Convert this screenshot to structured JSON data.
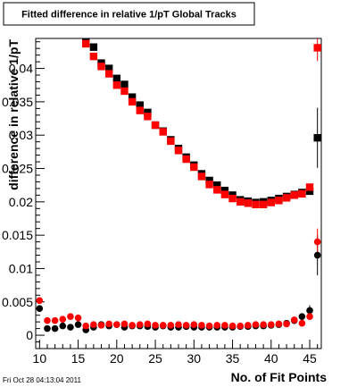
{
  "chart_data": {
    "type": "scatter",
    "title": "Fitted difference in relative 1/pT  Global Tracks",
    "xlabel": "No. of Fit Points",
    "ylabel": "difference in relative 1/pT",
    "xlim": [
      9.5,
      46.5
    ],
    "ylim": [
      -0.002,
      0.0445
    ],
    "x_ticks": [
      10,
      15,
      20,
      25,
      30,
      35,
      40,
      45
    ],
    "x_tick_labels": [
      "10",
      "15",
      "20",
      "25",
      "30",
      "35",
      "40",
      "45"
    ],
    "y_ticks": [
      0,
      0.005,
      0.01,
      0.015,
      0.02,
      0.025,
      0.03,
      0.035,
      0.04
    ],
    "y_tick_labels": [
      "0",
      "0.005",
      "0.01",
      "0.015",
      "0.02",
      "0.025",
      "0.03",
      "0.035",
      "0.04"
    ],
    "grid": false,
    "legend": "none",
    "colors": {
      "red": "#ff0000",
      "black": "#000000"
    },
    "series": [
      {
        "color": "#000000",
        "x": [
          16,
          17,
          18,
          19,
          20,
          21,
          22,
          23,
          24,
          25,
          26,
          27,
          28,
          29,
          30,
          31,
          32,
          33,
          34,
          35,
          36,
          37,
          38,
          39,
          40,
          41,
          42,
          43,
          44,
          45,
          46
        ],
        "y": [
          0.0445,
          0.0432,
          0.0408,
          0.04,
          0.0385,
          0.0376,
          0.0357,
          0.0345,
          0.0334,
          0.0315,
          0.0306,
          0.0293,
          0.028,
          0.0267,
          0.0255,
          0.0242,
          0.0232,
          0.0225,
          0.0217,
          0.021,
          0.0203,
          0.0201,
          0.0199,
          0.02,
          0.0202,
          0.0205,
          0.0208,
          0.0211,
          0.0214,
          0.0216,
          0.0296
        ],
        "yerr": [
          0,
          0,
          0,
          0,
          0,
          0,
          0,
          0,
          0,
          0,
          0,
          0,
          0,
          0,
          0,
          0,
          0,
          0,
          0,
          0,
          0,
          0,
          0,
          0,
          0,
          0,
          0,
          0,
          0,
          0,
          0.0045
        ]
      },
      {
        "color": "#ff0000",
        "x": [
          16,
          17,
          18,
          19,
          20,
          21,
          22,
          23,
          24,
          25,
          26,
          27,
          28,
          29,
          30,
          31,
          32,
          33,
          34,
          35,
          36,
          37,
          38,
          39,
          40,
          41,
          42,
          43,
          44,
          45,
          46
        ],
        "y": [
          0.0437,
          0.0418,
          0.0403,
          0.0392,
          0.0375,
          0.0366,
          0.035,
          0.0337,
          0.0328,
          0.0315,
          0.0305,
          0.0291,
          0.0277,
          0.0264,
          0.0252,
          0.0238,
          0.0226,
          0.0218,
          0.0211,
          0.0205,
          0.02,
          0.0198,
          0.0196,
          0.0196,
          0.0199,
          0.0202,
          0.0206,
          0.021,
          0.0212,
          0.0222,
          0.0431
        ],
        "yerr": [
          0,
          0,
          0,
          0,
          0,
          0,
          0,
          0,
          0,
          0,
          0,
          0,
          0,
          0,
          0,
          0,
          0,
          0,
          0,
          0,
          0,
          0,
          0,
          0,
          0,
          0,
          0,
          0,
          0,
          0,
          0.002
        ]
      },
      {
        "color": "#000000",
        "x": [
          10,
          11,
          12,
          13,
          14,
          15,
          16,
          17,
          18,
          19,
          20,
          21,
          22,
          23,
          24,
          25,
          26,
          27,
          28,
          29,
          30,
          31,
          32,
          33,
          34,
          35,
          36,
          37,
          38,
          39,
          40,
          41,
          42,
          43,
          44,
          45,
          46
        ],
        "y": [
          0.004,
          0.001,
          0.001,
          0.0014,
          0.0012,
          0.0016,
          0.0008,
          0.0012,
          0.0016,
          0.0014,
          0.0016,
          0.0012,
          0.0014,
          0.0014,
          0.0013,
          0.0012,
          0.0014,
          0.0012,
          0.0012,
          0.0013,
          0.0012,
          0.0012,
          0.0012,
          0.0012,
          0.0012,
          0.0012,
          0.0013,
          0.0013,
          0.0014,
          0.0014,
          0.0015,
          0.0016,
          0.0018,
          0.0022,
          0.0028,
          0.0037,
          0.012
        ],
        "yerr": [
          0,
          0,
          0,
          0,
          0,
          0,
          0,
          0,
          0,
          0,
          0,
          0,
          0,
          0,
          0,
          0,
          0,
          0,
          0,
          0,
          0,
          0,
          0,
          0,
          0,
          0,
          0,
          0,
          0,
          0,
          0,
          0,
          0,
          0,
          0,
          0.0008,
          0.003
        ]
      },
      {
        "color": "#ff0000",
        "x": [
          10,
          11,
          12,
          13,
          14,
          15,
          16,
          17,
          18,
          19,
          20,
          21,
          22,
          23,
          24,
          25,
          26,
          27,
          28,
          29,
          30,
          31,
          32,
          33,
          34,
          35,
          36,
          37,
          38,
          39,
          40,
          41,
          42,
          43,
          44,
          45,
          46
        ],
        "y": [
          0.0052,
          0.0022,
          0.0022,
          0.0024,
          0.0028,
          0.0026,
          0.0014,
          0.0016,
          0.0015,
          0.0017,
          0.0016,
          0.0017,
          0.0015,
          0.0016,
          0.0017,
          0.0015,
          0.0015,
          0.0015,
          0.0016,
          0.0015,
          0.0016,
          0.0015,
          0.0014,
          0.0015,
          0.0015,
          0.0014,
          0.0014,
          0.0015,
          0.0016,
          0.0016,
          0.0016,
          0.0017,
          0.0017,
          0.0023,
          0.0018,
          0.0028,
          0.014
        ],
        "yerr": [
          0,
          0,
          0,
          0,
          0,
          0,
          0,
          0,
          0,
          0,
          0,
          0,
          0,
          0,
          0,
          0,
          0,
          0,
          0,
          0,
          0,
          0,
          0,
          0,
          0,
          0,
          0,
          0,
          0,
          0,
          0,
          0,
          0,
          0,
          0,
          0,
          0.002
        ]
      }
    ]
  },
  "footer": {
    "timestamp": "Fri Oct 28 04:13:04 2011"
  }
}
